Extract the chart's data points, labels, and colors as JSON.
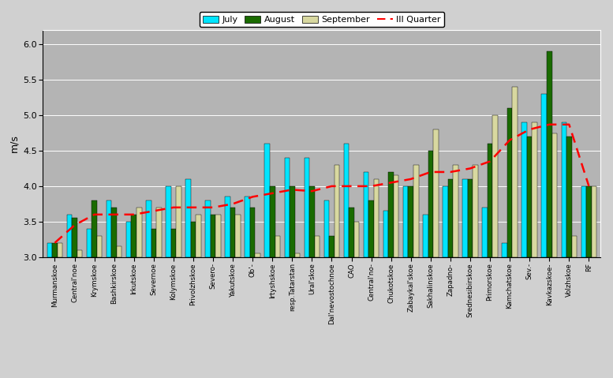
{
  "categories": [
    "Murmanskoe",
    "Central'noe",
    "Krymskoe",
    "Bashkirskoe",
    "Irkutskoe",
    "Severnoe",
    "Kolymskoe",
    "Privolzhskoe",
    "Severo-",
    "Yakutskoe",
    "Ob'-",
    "Irtyshskoe",
    "resp.Tatarstan",
    "Ural'skoe",
    "Dal'nevostochnoe",
    "CAO",
    "Central'no-",
    "Chukotskoe",
    "Zabaykal'skoe",
    "Sakhalinskoe",
    "Zapadno-",
    "Srednesibirskoe",
    "Primorskoe",
    "Kamchatskoe",
    "Sev.-",
    "Kavkazskoe-",
    "Volzhskoe",
    "RF"
  ],
  "july": [
    3.2,
    3.6,
    3.4,
    3.8,
    3.5,
    3.8,
    4.0,
    4.1,
    3.8,
    3.85,
    3.85,
    4.6,
    4.4,
    4.4,
    3.8,
    4.6,
    4.2,
    3.65,
    4.0,
    3.6,
    4.0,
    4.1,
    3.7,
    3.2,
    4.9,
    5.3,
    4.9,
    4.0
  ],
  "august": [
    3.2,
    3.55,
    3.8,
    3.7,
    3.6,
    3.4,
    3.4,
    3.5,
    3.6,
    3.7,
    3.7,
    4.0,
    4.0,
    4.0,
    3.3,
    3.7,
    3.8,
    4.2,
    4.0,
    4.5,
    4.1,
    4.1,
    4.6,
    5.1,
    4.7,
    5.9,
    4.7,
    4.0
  ],
  "september": [
    3.2,
    3.1,
    3.3,
    3.15,
    3.7,
    3.7,
    4.0,
    3.6,
    3.6,
    3.6,
    3.05,
    3.3,
    3.05,
    3.3,
    4.3,
    3.5,
    4.1,
    4.15,
    4.3,
    4.8,
    4.3,
    4.3,
    5.0,
    5.4,
    4.9,
    4.75,
    3.3,
    4.0
  ],
  "quarter": [
    3.2,
    3.45,
    3.6,
    3.6,
    3.6,
    3.65,
    3.7,
    3.7,
    3.7,
    3.75,
    3.85,
    3.9,
    3.95,
    3.93,
    4.0,
    4.0,
    4.0,
    4.05,
    4.1,
    4.2,
    4.2,
    4.25,
    4.35,
    4.65,
    4.8,
    4.87,
    4.87,
    4.0
  ],
  "c_july": "#00e5ff",
  "c_august": "#1a6b00",
  "c_september": "#d8d8a0",
  "fig_bg": "#d0d0d0",
  "plot_bg": "#b4b4b4",
  "ylabel": "m/s",
  "ylim": [
    3.0,
    6.2
  ],
  "yticks": [
    3.0,
    3.5,
    4.0,
    4.5,
    5.0,
    5.5,
    6.0
  ],
  "bar_bottom": 3.0,
  "bar_width": 0.26
}
